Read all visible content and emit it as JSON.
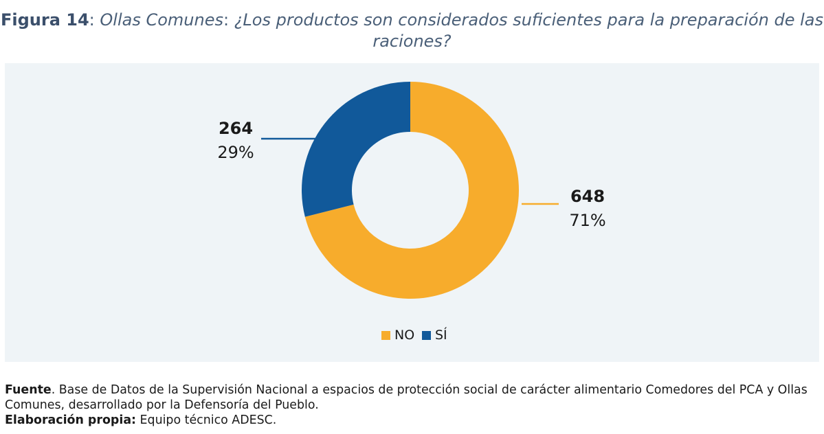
{
  "title": {
    "label": "Figura 14",
    "text": "Ollas Comunes: ¿Los productos son considerados suficientes para la preparación de las raciones?"
  },
  "chart_data": {
    "type": "pie",
    "variant": "donut",
    "categories": [
      "NO",
      "SÍ"
    ],
    "values": [
      648,
      264
    ],
    "percent_labels": [
      "71%",
      "29%"
    ],
    "colors": [
      "#f7ac2c",
      "#11599a"
    ],
    "legend": {
      "placement": "bottom",
      "entries": [
        "NO",
        "SÍ"
      ]
    }
  },
  "footer": {
    "source_label": "Fuente",
    "source_text": ". Base de Datos de la Supervisión Nacional a espacios de protección social de carácter alimentario Comedores del PCA y Ollas Comunes, desarrollado por la Defensoría del Pueblo.",
    "credit_label": "Elaboración propia:",
    "credit_text": " Equipo técnico ADESC."
  }
}
